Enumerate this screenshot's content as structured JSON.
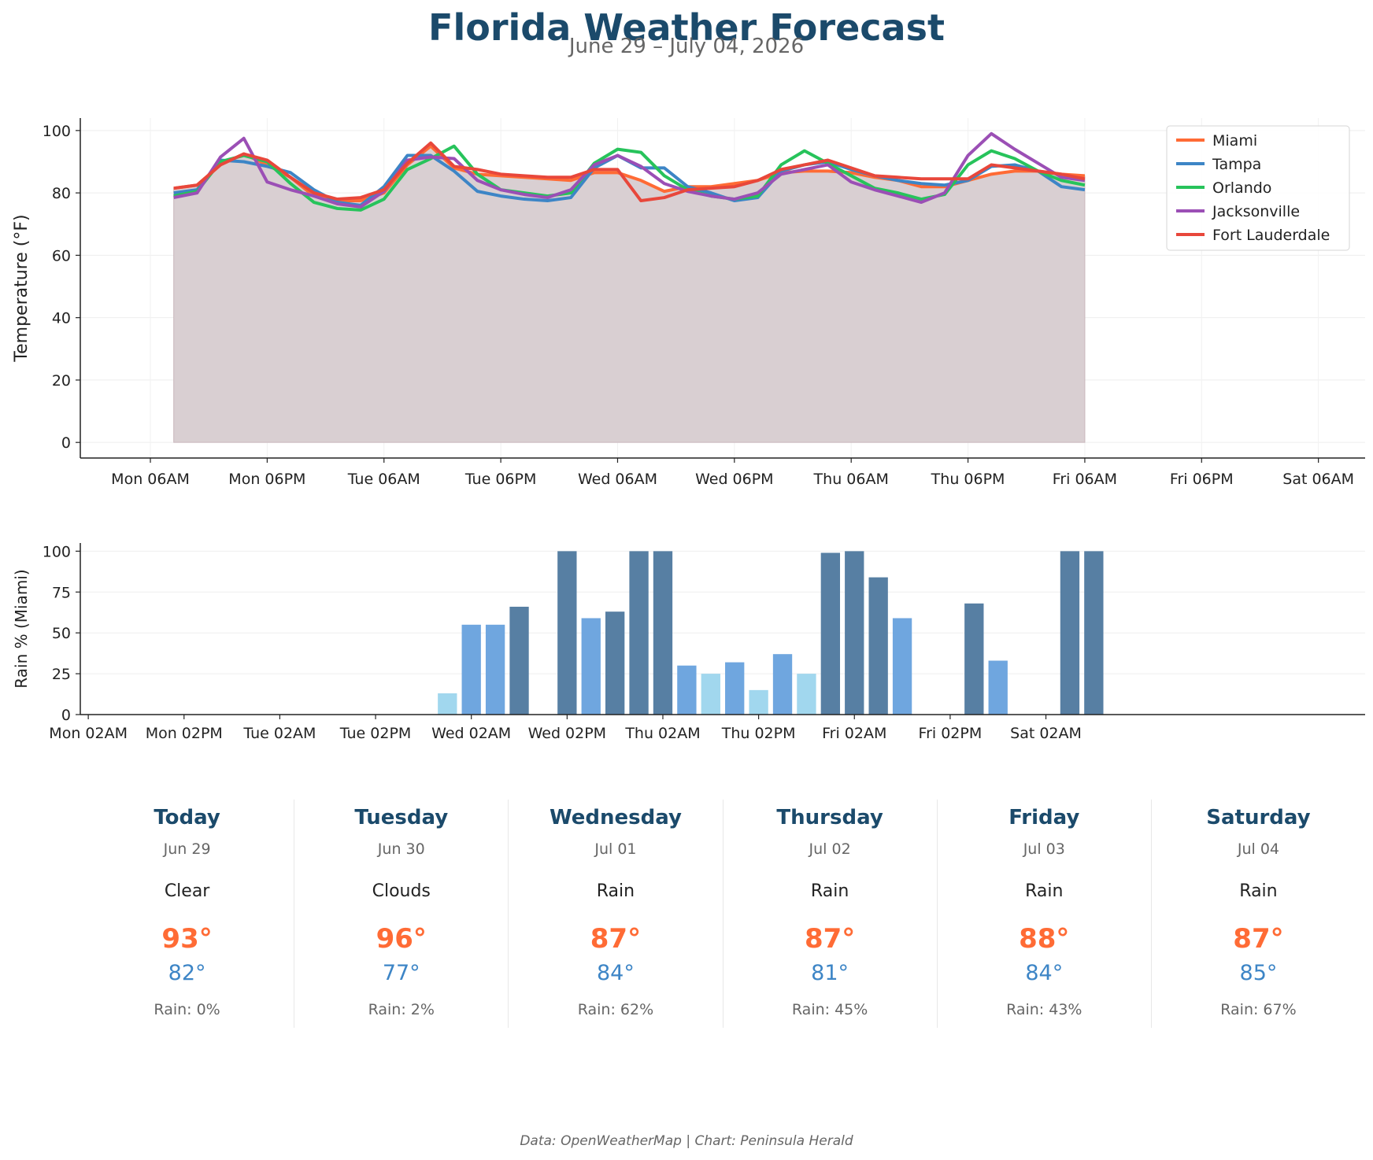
{
  "header": {
    "title": "Florida Weather Forecast",
    "subtitle": "June 29 – July 04, 2026"
  },
  "chart_data": [
    {
      "type": "line",
      "ylabel": "Temperature (°F)",
      "ylim": [
        -5,
        104
      ],
      "yticks": [
        0,
        20,
        40,
        60,
        80,
        100
      ],
      "xlim": [
        -9,
        156
      ],
      "x_tick_positions": [
        0,
        15,
        30,
        45,
        60,
        75,
        90,
        105,
        120,
        135,
        150
      ],
      "x_tick_labels": [
        "Mon 06AM",
        "Mon 06PM",
        "Tue 06AM",
        "Tue 06PM",
        "Wed 06AM",
        "Wed 06PM",
        "Thu 06AM",
        "Thu 06PM",
        "Fri 06AM",
        "Fri 06PM",
        "Sat 06AM"
      ],
      "x_hours": [
        -9,
        -6,
        -3,
        0,
        3,
        6,
        9,
        12,
        15,
        18,
        21,
        24,
        27,
        30,
        33,
        36,
        39,
        42,
        45,
        48,
        51,
        54,
        57,
        60,
        63,
        66,
        69,
        72,
        75,
        78,
        81,
        84,
        87,
        90,
        93,
        96,
        99,
        102,
        105,
        108,
        111,
        114,
        117,
        120,
        123,
        126,
        129,
        132,
        135,
        138,
        141,
        144,
        147,
        150,
        153,
        156
      ],
      "x_start_hour": 3,
      "x_step_hours": 3,
      "fill_series": "Miami",
      "grid": true,
      "legend": "top-right",
      "series": [
        {
          "name": "Miami",
          "color": "#ff6b35",
          "values": [
            81.5,
            82.5,
            89,
            92.5,
            89,
            85,
            79,
            77.5,
            77.5,
            80,
            89,
            95,
            88,
            86,
            85.5,
            85,
            84.5,
            84,
            86.5,
            86.5,
            84,
            80.5,
            82,
            82,
            83,
            84,
            86.5,
            87,
            87,
            86.5,
            85,
            84,
            82,
            82,
            84,
            86,
            87,
            87,
            86,
            85.5
          ]
        },
        {
          "name": "Tampa",
          "color": "#3d85c6",
          "values": [
            80,
            81,
            90.5,
            90,
            88.5,
            86.5,
            81,
            77,
            76,
            82,
            92,
            92,
            87,
            80.5,
            79,
            78,
            77.5,
            78.5,
            88,
            92,
            88,
            88,
            82,
            80,
            77.5,
            78.5,
            87,
            89,
            90,
            87.5,
            85.5,
            84,
            83,
            82.5,
            84,
            88.5,
            89,
            87,
            82,
            81
          ]
        },
        {
          "name": "Orlando",
          "color": "#27c35b",
          "values": [
            79,
            80.5,
            90,
            92,
            90,
            83,
            77,
            75,
            74.5,
            78,
            87.5,
            91,
            95,
            86,
            81,
            80,
            79,
            80,
            89.5,
            94,
            93,
            85.5,
            81,
            79,
            78,
            79,
            89,
            93.5,
            89.5,
            85.5,
            81.5,
            80,
            78,
            79.5,
            89,
            93.5,
            91,
            87,
            84,
            82.5
          ]
        },
        {
          "name": "Jacksonville",
          "color": "#9b4fb5",
          "values": [
            78.5,
            80,
            91.5,
            97.5,
            83.5,
            81,
            79,
            76.5,
            75.5,
            80.5,
            90.5,
            91.5,
            91,
            84,
            81,
            79.5,
            78.5,
            81,
            89,
            92,
            88.5,
            83,
            80.5,
            79,
            78,
            80,
            86,
            87.5,
            89,
            83.5,
            81,
            79,
            77,
            80,
            92,
            99,
            94,
            89.5,
            85,
            84
          ]
        },
        {
          "name": "Fort Lauderdale",
          "color": "#e8473b",
          "values": [
            81.5,
            82.5,
            89,
            92.5,
            90.5,
            85,
            80,
            78,
            78.5,
            81,
            89.5,
            96,
            88.5,
            87.5,
            86,
            85.5,
            85,
            85,
            87.5,
            87.5,
            77.5,
            78.5,
            81,
            81.5,
            82,
            84,
            87.5,
            89,
            90.5,
            88,
            85.5,
            85,
            84.5,
            84.5,
            84.5,
            89,
            88,
            87,
            86,
            84.5
          ]
        }
      ]
    },
    {
      "type": "bar",
      "ylabel": "Rain % (Miami)",
      "ylim": [
        0,
        105
      ],
      "yticks": [
        0,
        25,
        50,
        75,
        100
      ],
      "xlim": [
        -1,
        160
      ],
      "x_tick_positions": [
        0,
        12,
        24,
        36,
        48,
        60,
        72,
        84,
        96,
        108,
        120
      ],
      "x_tick_labels": [
        "Mon 02AM",
        "Mon 02PM",
        "Tue 02AM",
        "Tue 02PM",
        "Wed 02AM",
        "Wed 02PM",
        "Thu 02AM",
        "Thu 02PM",
        "Fri 02AM",
        "Fri 02PM",
        "Sat 02AM"
      ],
      "x_start_hour": 0,
      "x_step_hours": 3,
      "color_thresholds": {
        "low_max": 30,
        "mid_max": 60
      },
      "colors": {
        "low": "#a1d7ee",
        "mid": "#6fa6df",
        "high": "#577fa3"
      },
      "values": [
        0,
        0,
        0,
        0,
        0,
        0,
        0,
        0,
        0,
        0,
        0,
        0,
        0,
        0,
        0,
        13,
        55,
        55,
        66,
        0,
        100,
        59,
        63,
        100,
        100,
        30,
        25,
        32,
        15,
        37,
        25,
        99,
        100,
        84,
        59,
        0,
        0,
        68,
        33,
        0,
        0,
        100,
        100
      ]
    }
  ],
  "daily": [
    {
      "name": "Today",
      "date": "Jun 29",
      "condition": "Clear",
      "high": "93°",
      "low": "82°",
      "rain": "Rain: 0%"
    },
    {
      "name": "Tuesday",
      "date": "Jun 30",
      "condition": "Clouds",
      "high": "96°",
      "low": "77°",
      "rain": "Rain: 2%"
    },
    {
      "name": "Wednesday",
      "date": "Jul 01",
      "condition": "Rain",
      "high": "87°",
      "low": "84°",
      "rain": "Rain: 62%"
    },
    {
      "name": "Thursday",
      "date": "Jul 02",
      "condition": "Rain",
      "high": "87°",
      "low": "81°",
      "rain": "Rain: 45%"
    },
    {
      "name": "Friday",
      "date": "Jul 03",
      "condition": "Rain",
      "high": "88°",
      "low": "84°",
      "rain": "Rain: 43%"
    },
    {
      "name": "Saturday",
      "date": "Jul 04",
      "condition": "Rain",
      "high": "87°",
      "low": "85°",
      "rain": "Rain: 67%"
    }
  ],
  "footer": {
    "source": "Data: OpenWeatherMap | Chart: Peninsula Herald"
  }
}
